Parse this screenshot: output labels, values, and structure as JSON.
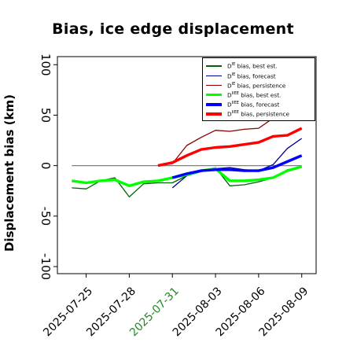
{
  "chart_data": {
    "type": "line",
    "title": "Bias, ice edge displacement",
    "xlabel": "",
    "ylabel": "Displacement bias (km)",
    "xlim": [
      "2025-07-23",
      "2025-08-10"
    ],
    "ylim": [
      -107,
      108
    ],
    "y_ticks": [
      -100,
      -50,
      0,
      50,
      100
    ],
    "x_ticks": [
      "2025-07-25",
      "2025-07-28",
      "2025-07-31",
      "2025-08-03",
      "2025-08-06",
      "2025-08-09"
    ],
    "highlighted_x_tick": "2025-07-31",
    "highlight_color": "#228b22",
    "grid": false,
    "legend_position": "top-right",
    "reference_line": {
      "y": 0,
      "x_from": "2025-07-24",
      "x_to": "2025-08-09",
      "color": "#7f7f7f"
    },
    "series": [
      {
        "name": "D^IE bias, best est.",
        "color": "#006400",
        "width": 1.3,
        "x": [
          "2025-07-24",
          "2025-07-25",
          "2025-07-26",
          "2025-07-27",
          "2025-07-28",
          "2025-07-29",
          "2025-07-30",
          "2025-07-31",
          "2025-08-01",
          "2025-08-02",
          "2025-08-03",
          "2025-08-04",
          "2025-08-05",
          "2025-08-06",
          "2025-08-07",
          "2025-08-08",
          "2025-08-09"
        ],
        "values": [
          -22,
          -23,
          -15,
          -12,
          -31,
          -18,
          -17,
          -17,
          -10,
          -5,
          -2,
          -20,
          -19,
          -16,
          -12,
          -4,
          -1
        ]
      },
      {
        "name": "D^IE bias, forecast",
        "color": "#00008b",
        "width": 1.3,
        "x": [
          "2025-07-31",
          "2025-08-01",
          "2025-08-02",
          "2025-08-03",
          "2025-08-04",
          "2025-08-05",
          "2025-08-06",
          "2025-08-07",
          "2025-08-08",
          "2025-08-09"
        ],
        "values": [
          -22,
          -10,
          -6,
          -3,
          -2,
          -4,
          -5,
          1,
          17,
          27
        ]
      },
      {
        "name": "D^IE bias, persistence",
        "color": "#8b0000",
        "width": 1.3,
        "x": [
          "2025-07-30",
          "2025-07-31",
          "2025-08-01",
          "2025-08-02",
          "2025-08-03",
          "2025-08-04",
          "2025-08-05",
          "2025-08-06",
          "2025-08-07"
        ],
        "values": [
          0,
          2,
          20,
          28,
          35,
          34,
          36,
          37,
          47
        ]
      },
      {
        "name": "D^IIEE bias, best est.",
        "color": "#00ff00",
        "width": 3.4,
        "x": [
          "2025-07-24",
          "2025-07-25",
          "2025-07-26",
          "2025-07-27",
          "2025-07-28",
          "2025-07-29",
          "2025-07-30",
          "2025-07-31",
          "2025-08-01",
          "2025-08-02",
          "2025-08-03",
          "2025-08-04",
          "2025-08-05",
          "2025-08-06",
          "2025-08-07",
          "2025-08-08",
          "2025-08-09"
        ],
        "values": [
          -15,
          -17,
          -15,
          -14,
          -20,
          -16,
          -15,
          -12,
          -9,
          -5,
          -3,
          -15,
          -15,
          -14,
          -12,
          -5,
          -1
        ]
      },
      {
        "name": "D^IIEE bias, forecast",
        "color": "#0000ff",
        "width": 3.4,
        "x": [
          "2025-07-31",
          "2025-08-01",
          "2025-08-02",
          "2025-08-03",
          "2025-08-04",
          "2025-08-05",
          "2025-08-06",
          "2025-08-07",
          "2025-08-08",
          "2025-08-09"
        ],
        "values": [
          -12,
          -8,
          -5,
          -4,
          -4,
          -5,
          -5,
          -2,
          4,
          10
        ]
      },
      {
        "name": "D^IIEE bias, persistence",
        "color": "#ff0000",
        "width": 3.4,
        "x": [
          "2025-07-30",
          "2025-07-31",
          "2025-08-01",
          "2025-08-02",
          "2025-08-03",
          "2025-08-04",
          "2025-08-05",
          "2025-08-06",
          "2025-08-07",
          "2025-08-08",
          "2025-08-09"
        ],
        "values": [
          0,
          3,
          10,
          16,
          18,
          19,
          21,
          23,
          29,
          30,
          37
        ]
      }
    ]
  }
}
